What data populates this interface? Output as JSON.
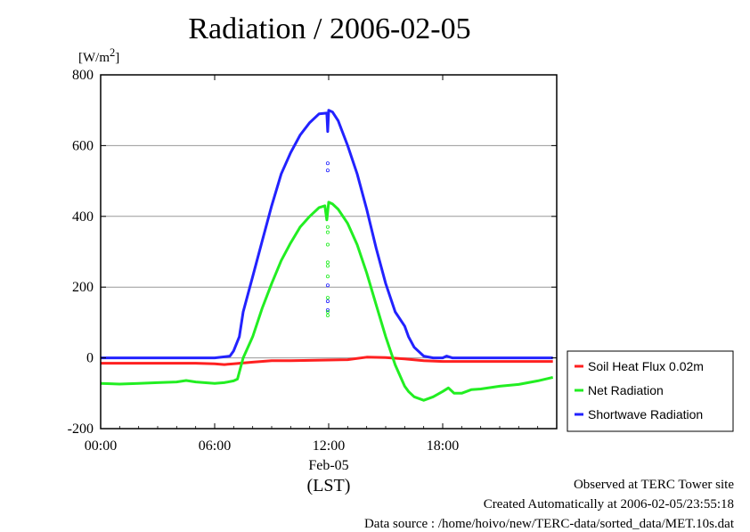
{
  "title": "Radiation / 2006-02-05",
  "unit_label": "[W/m",
  "unit_sup": "2",
  "unit_close": "]",
  "x_date_label": "Feb-05",
  "x_axis_label": "(LST)",
  "footer": {
    "line1": "Observed at TERC Tower site",
    "line2": "Created Automatically at 2006-02-05/23:55:18",
    "line3": "Data source : /home/hoivo/new/TERC-data/sorted_data/MET.10s.dat"
  },
  "colors": {
    "soil": "#ff2020",
    "net": "#22ee22",
    "shortwave": "#2222ff",
    "grid": "#999999"
  },
  "chart_data": {
    "type": "line",
    "title": "Radiation / 2006-02-05",
    "ylabel": "[W/m2]",
    "xlabel": "(LST)",
    "xlim": [
      0,
      24
    ],
    "ylim": [
      -200,
      800
    ],
    "x_ticks": [
      {
        "v": 0,
        "label": "00:00"
      },
      {
        "v": 6,
        "label": "06:00"
      },
      {
        "v": 12,
        "label": "12:00"
      },
      {
        "v": 18,
        "label": "18:00"
      }
    ],
    "y_ticks": [
      -200,
      0,
      200,
      400,
      600,
      800
    ],
    "grid": true,
    "legend_position": "right",
    "series": [
      {
        "name": "Soil Heat Flux 0.02m",
        "color": "#ff2020",
        "x": [
          0,
          2,
          4,
          5,
          6,
          6.5,
          7,
          8,
          9,
          10,
          11,
          12,
          13,
          14,
          15,
          16,
          17,
          18,
          20,
          22,
          23.8
        ],
        "y": [
          -15,
          -15,
          -15,
          -15,
          -17,
          -19,
          -17,
          -12,
          -8,
          -8,
          -7,
          -6,
          -5,
          2,
          1,
          -3,
          -8,
          -10,
          -10,
          -10,
          -10
        ]
      },
      {
        "name": "Net Radiation",
        "color": "#22ee22",
        "x": [
          0,
          1,
          2,
          3,
          4,
          4.5,
          5,
          6,
          6.5,
          7,
          7.2,
          7.5,
          8,
          8.5,
          9,
          9.5,
          10,
          10.5,
          11,
          11.5,
          11.8,
          11.9,
          12,
          12.2,
          12.5,
          13,
          13.5,
          14,
          14.5,
          15,
          15.5,
          16,
          16.2,
          16.5,
          17,
          17.5,
          18,
          18.3,
          18.6,
          19,
          19.5,
          20,
          21,
          22,
          23,
          23.8
        ],
        "y": [
          -72,
          -74,
          -72,
          -70,
          -68,
          -64,
          -68,
          -72,
          -70,
          -65,
          -60,
          0,
          60,
          140,
          210,
          275,
          325,
          370,
          400,
          425,
          430,
          390,
          440,
          435,
          420,
          380,
          320,
          240,
          150,
          60,
          -20,
          -80,
          -95,
          -110,
          -120,
          -110,
          -95,
          -85,
          -100,
          -100,
          -90,
          -88,
          -80,
          -75,
          -65,
          -55
        ]
      },
      {
        "name": "Shortwave Radiation",
        "color": "#2222ff",
        "x": [
          0,
          2,
          4,
          6,
          6.8,
          7,
          7.3,
          7.5,
          8,
          8.5,
          9,
          9.5,
          10,
          10.5,
          11,
          11.5,
          11.9,
          11.95,
          12,
          12.2,
          12.5,
          13,
          13.5,
          14,
          14.5,
          15,
          15.5,
          16,
          16.2,
          16.5,
          17,
          17.5,
          18,
          18.2,
          18.5,
          19,
          20,
          22,
          23.8
        ],
        "y": [
          0,
          0,
          0,
          0,
          5,
          20,
          60,
          130,
          230,
          330,
          430,
          520,
          580,
          630,
          665,
          690,
          692,
          640,
          700,
          695,
          670,
          600,
          520,
          420,
          310,
          210,
          130,
          90,
          60,
          30,
          5,
          0,
          0,
          5,
          0,
          0,
          0,
          0,
          0
        ]
      }
    ],
    "scatter_points": [
      {
        "color": "#2222ff",
        "x": 11.95,
        "y": [
          550,
          530
        ]
      },
      {
        "color": "#22ee22",
        "x": 11.95,
        "y": [
          370,
          355,
          320,
          270,
          260,
          230
        ]
      },
      {
        "color": "#2222ff",
        "x": 11.95,
        "y": [
          205,
          160,
          135
        ]
      },
      {
        "color": "#22ee22",
        "x": 11.95,
        "y": [
          170,
          130,
          120
        ]
      }
    ]
  }
}
